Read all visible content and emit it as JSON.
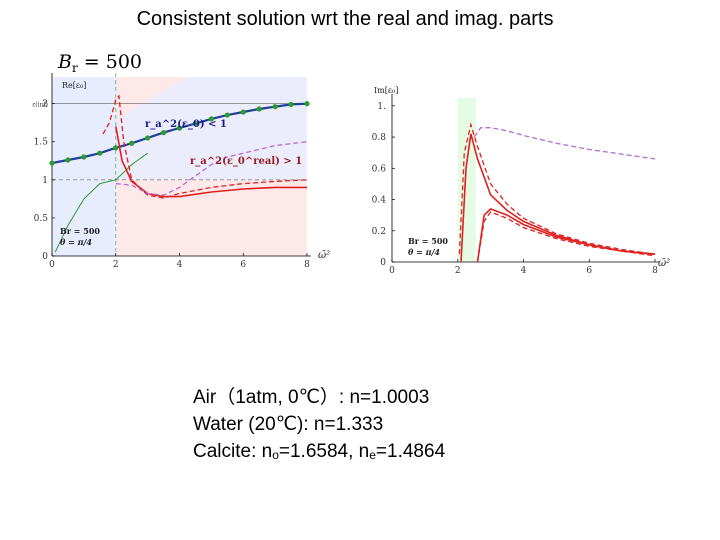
{
  "title": "Consistent solution wrt the real and imag. parts",
  "br_header": {
    "symbol": "B",
    "subscript": "r",
    "value": "= 500"
  },
  "notes": {
    "air": "Air（1atm, 0℃）: n=1.0003",
    "water": "Water (20℃): n=1.333",
    "calcite_prefix": "Calcite: n",
    "calcite_o_sub": "o",
    "calcite_o_val": "=1.6584, n",
    "calcite_e_sub": "e",
    "calcite_e_val": "=1.4864"
  },
  "colors": {
    "real_region_blue": "#e8ecff",
    "real_region_pink": "#fde8ea",
    "imag_band_green": "#e6fbe4",
    "green_curve": "#2c9a2c",
    "blue_curve": "#1f3f9a",
    "red_curve": "#e02020",
    "purple_curve": "#b86ad6"
  },
  "chart_data": [
    {
      "type": "line",
      "panel": "real part",
      "ylabel": "Re[ε₀]",
      "ytick_top_label": "ε(inf)",
      "xlabel": "ω̄²",
      "x_ticks": [
        "0",
        "2",
        "4",
        "6",
        "8"
      ],
      "y_ticks": [
        "0",
        "0.5",
        "1",
        "1.5",
        "2"
      ],
      "xlim": [
        0,
        8
      ],
      "ylim": [
        0,
        2.35
      ],
      "reference_lines": {
        "asymptote_y": 2.0,
        "unity_y": 1.0,
        "resonance_x": 2.0
      },
      "annotations": {
        "region_blue": "r_a^2(ε_0) < 1",
        "region_pink": "r_a^2(ε_0^real) > 1",
        "params_1": "Br = 500",
        "params_2": "θ = π/4"
      },
      "series": [
        {
          "style": "green_dots_blue_line",
          "x": [
            0,
            0.5,
            1,
            1.5,
            2,
            2.5,
            3,
            3.5,
            4,
            4.5,
            5,
            5.5,
            6,
            6.5,
            7,
            7.5,
            8
          ],
          "y": [
            1.22,
            1.26,
            1.3,
            1.35,
            1.42,
            1.48,
            1.55,
            1.62,
            1.68,
            1.74,
            1.8,
            1.85,
            1.89,
            1.93,
            1.96,
            1.99,
            2.0
          ]
        },
        {
          "style": "green_thin",
          "x": [
            0.1,
            0.5,
            1,
            1.5,
            2,
            2.5,
            3
          ],
          "y": [
            0.05,
            0.4,
            0.75,
            0.95,
            1.0,
            1.2,
            1.35
          ]
        },
        {
          "style": "red_dashed",
          "x": [
            1.6,
            1.8,
            2.0,
            2.1,
            2.25,
            2.5,
            3,
            3.5,
            4,
            5,
            6,
            7,
            8
          ],
          "y": [
            1.6,
            1.75,
            2.05,
            2.1,
            1.5,
            1.0,
            0.8,
            0.76,
            0.82,
            0.9,
            0.95,
            0.98,
            1.0
          ]
        },
        {
          "style": "red_solid",
          "x": [
            2.0,
            2.2,
            2.5,
            3,
            3.5,
            4,
            5,
            6,
            7,
            8
          ],
          "y": [
            1.7,
            1.25,
            0.98,
            0.82,
            0.78,
            0.78,
            0.84,
            0.88,
            0.9,
            0.9
          ]
        },
        {
          "style": "purple_dashed",
          "x": [
            2.0,
            2.5,
            3,
            3.5,
            4,
            4.5,
            5,
            5.5,
            6,
            7,
            8
          ],
          "y": [
            0.95,
            0.93,
            0.82,
            0.8,
            0.9,
            1.05,
            1.2,
            1.3,
            1.35,
            1.45,
            1.5
          ]
        }
      ]
    },
    {
      "type": "line",
      "panel": "imaginary part",
      "ylabel": "Im[ε₀]",
      "xlabel": "ω̄²",
      "x_ticks": [
        "0",
        "2",
        "4",
        "6",
        "8"
      ],
      "y_ticks": [
        "0",
        "0.2",
        "0.4",
        "0.6",
        "0.8",
        "1."
      ],
      "xlim": [
        0,
        8
      ],
      "ylim": [
        0,
        1.05
      ],
      "band_x": [
        2.0,
        2.55
      ],
      "annotations": {
        "params_1": "Br = 500",
        "params_2": "θ = π/4"
      },
      "series": [
        {
          "style": "purple_dashed",
          "x": [
            2.5,
            2.7,
            3,
            3.5,
            4,
            5,
            6,
            7,
            8
          ],
          "y": [
            0.8,
            0.86,
            0.86,
            0.84,
            0.81,
            0.76,
            0.72,
            0.69,
            0.66
          ]
        },
        {
          "style": "red_dashed",
          "x": [
            2.05,
            2.2,
            2.4,
            2.6,
            3,
            3.5,
            4,
            5,
            6,
            7,
            8
          ],
          "y": [
            0.05,
            0.7,
            0.88,
            0.74,
            0.5,
            0.37,
            0.28,
            0.18,
            0.12,
            0.08,
            0.05
          ]
        },
        {
          "style": "red_solid",
          "x": [
            2.1,
            2.25,
            2.4,
            2.6,
            3,
            3.5,
            4,
            5,
            6,
            7,
            8
          ],
          "y": [
            0.0,
            0.6,
            0.82,
            0.66,
            0.43,
            0.33,
            0.26,
            0.17,
            0.11,
            0.07,
            0.05
          ]
        },
        {
          "style": "red_solid",
          "x": [
            2.6,
            2.8,
            3,
            3.5,
            4,
            5,
            6,
            7,
            8
          ],
          "y": [
            0.0,
            0.3,
            0.34,
            0.3,
            0.24,
            0.16,
            0.11,
            0.07,
            0.05
          ]
        },
        {
          "style": "red_dashed",
          "x": [
            2.6,
            2.8,
            3,
            3.5,
            4,
            5,
            6,
            7,
            8
          ],
          "y": [
            0.0,
            0.26,
            0.32,
            0.28,
            0.22,
            0.15,
            0.1,
            0.07,
            0.04
          ]
        }
      ]
    }
  ]
}
